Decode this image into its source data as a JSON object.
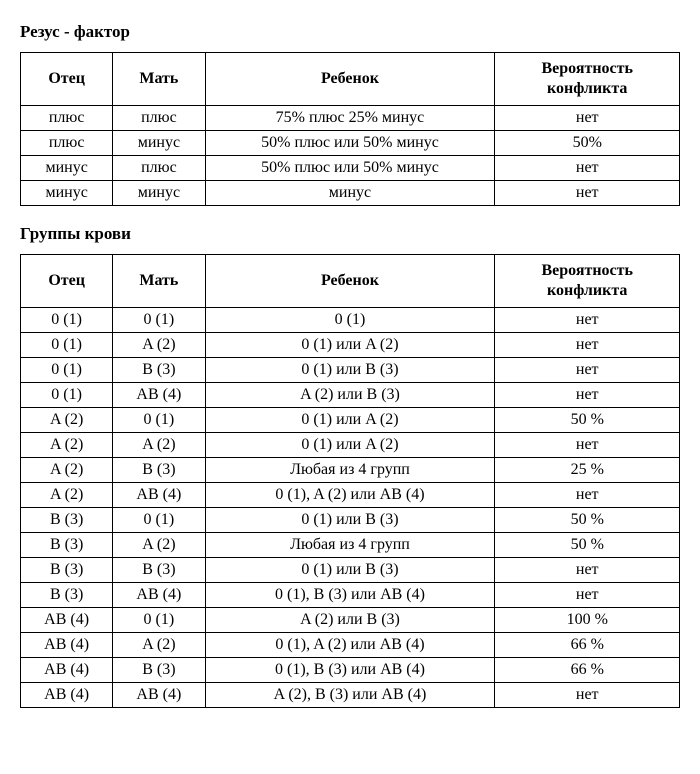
{
  "rh": {
    "title": "Резус - фактор",
    "columns": [
      "Отец",
      "Мать",
      "Ребенок",
      "Вероятность конфликта"
    ],
    "rows": [
      [
        "плюс",
        "плюс",
        "75% плюс 25% минус",
        "нет"
      ],
      [
        "плюс",
        "минус",
        "50% плюс или 50% минус",
        "50%"
      ],
      [
        "минус",
        "плюс",
        "50% плюс или 50% минус",
        "нет"
      ],
      [
        "минус",
        "минус",
        "минус",
        "нет"
      ]
    ]
  },
  "blood": {
    "title": "Группы крови",
    "columns": [
      "Отец",
      "Мать",
      "Ребенок",
      "Вероятность конфликта"
    ],
    "rows": [
      [
        "0 (1)",
        "0 (1)",
        "0 (1)",
        "нет"
      ],
      [
        "0 (1)",
        "A (2)",
        "0 (1) или A (2)",
        "нет"
      ],
      [
        "0 (1)",
        "B (3)",
        "0 (1) или B (3)",
        "нет"
      ],
      [
        "0 (1)",
        "AB (4)",
        "A (2) или B (3)",
        "нет"
      ],
      [
        "A (2)",
        "0 (1)",
        "0 (1) или A (2)",
        "50 %"
      ],
      [
        "A (2)",
        "A (2)",
        "0 (1) или A (2)",
        "нет"
      ],
      [
        "A (2)",
        "B (3)",
        "Любая из 4 групп",
        "25 %"
      ],
      [
        "A (2)",
        "AB (4)",
        "0 (1), A (2) или AB (4)",
        "нет"
      ],
      [
        "B (3)",
        "0 (1)",
        "0 (1) или B (3)",
        "50 %"
      ],
      [
        "B (3)",
        "A (2)",
        "Любая из 4 групп",
        "50 %"
      ],
      [
        "B (3)",
        "B (3)",
        "0 (1) или B (3)",
        "нет"
      ],
      [
        "B (3)",
        "AB (4)",
        "0 (1), B (3) или AB (4)",
        "нет"
      ],
      [
        "AB (4)",
        "0 (1)",
        "A (2) или B (3)",
        "100 %"
      ],
      [
        "AB (4)",
        "A (2)",
        "0 (1), A (2) или AB (4)",
        "66 %"
      ],
      [
        "AB (4)",
        "B (3)",
        "0 (1), B (3) или AB (4)",
        "66 %"
      ],
      [
        "AB (4)",
        "AB (4)",
        "A (2), B (3) или AB (4)",
        "нет"
      ]
    ]
  }
}
